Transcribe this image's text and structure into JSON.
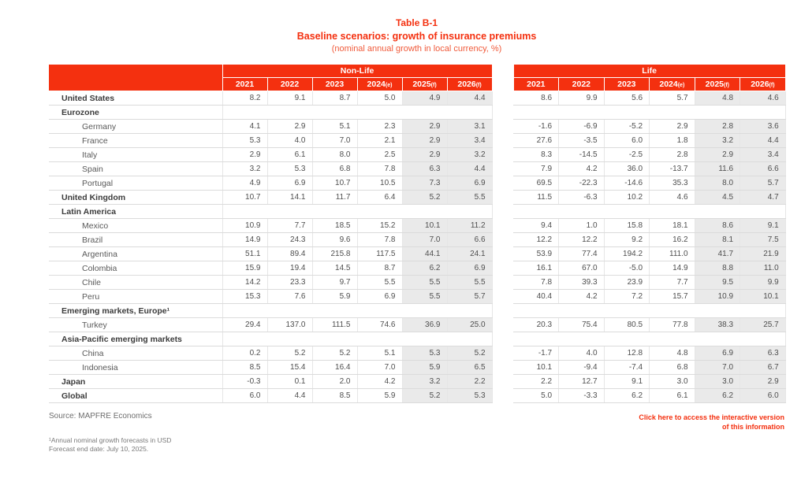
{
  "title": {
    "line1": "Table B-1",
    "line2": "Baseline scenarios: growth of insurance premiums",
    "line3": "(nominal annual growth in local currency, %)"
  },
  "colors": {
    "header_red": "#F4300F",
    "shade_gray": "#EAEAEA"
  },
  "table": {
    "group_headers": {
      "nonlife": "Non-Life",
      "life": "Life"
    },
    "years": [
      {
        "y": "2021",
        "s": ""
      },
      {
        "y": "2022",
        "s": ""
      },
      {
        "y": "2023",
        "s": ""
      },
      {
        "y": "2024",
        "s": "(e)"
      },
      {
        "y": "2025",
        "s": "(f)"
      },
      {
        "y": "2026",
        "s": "(f)"
      }
    ],
    "forecast_shaded_year_indexes": [
      4,
      5
    ],
    "rows": [
      {
        "label": "United States",
        "type": "region",
        "nonlife": [
          "8.2",
          "9.1",
          "8.7",
          "5.0",
          "4.9",
          "4.4"
        ],
        "life": [
          "8.6",
          "9.9",
          "5.6",
          "5.7",
          "4.8",
          "4.6"
        ]
      },
      {
        "label": "Eurozone",
        "type": "group"
      },
      {
        "label": "Germany",
        "type": "country",
        "nonlife": [
          "4.1",
          "2.9",
          "5.1",
          "2.3",
          "2.9",
          "3.1"
        ],
        "life": [
          "-1.6",
          "-6.9",
          "-5.2",
          "2.9",
          "2.8",
          "3.6"
        ]
      },
      {
        "label": "France",
        "type": "country",
        "nonlife": [
          "5.3",
          "4.0",
          "7.0",
          "2.1",
          "2.9",
          "3.4"
        ],
        "life": [
          "27.6",
          "-3.5",
          "6.0",
          "1.8",
          "3.2",
          "4.4"
        ]
      },
      {
        "label": "Italy",
        "type": "country",
        "nonlife": [
          "2.9",
          "6.1",
          "8.0",
          "2.5",
          "2.9",
          "3.2"
        ],
        "life": [
          "8.3",
          "-14.5",
          "-2.5",
          "2.8",
          "2.9",
          "3.4"
        ]
      },
      {
        "label": "Spain",
        "type": "country",
        "nonlife": [
          "3.2",
          "5.3",
          "6.8",
          "7.8",
          "6.3",
          "4.4"
        ],
        "life": [
          "7.9",
          "4.2",
          "36.0",
          "-13.7",
          "11.6",
          "6.6"
        ]
      },
      {
        "label": "Portugal",
        "type": "country",
        "nonlife": [
          "4.9",
          "6.9",
          "10.7",
          "10.5",
          "7.3",
          "6.9"
        ],
        "life": [
          "69.5",
          "-22.3",
          "-14.6",
          "35.3",
          "8.0",
          "5.7"
        ]
      },
      {
        "label": "United Kingdom",
        "type": "region",
        "nonlife": [
          "10.7",
          "14.1",
          "11.7",
          "6.4",
          "5.2",
          "5.5"
        ],
        "life": [
          "11.5",
          "-6.3",
          "10.2",
          "4.6",
          "4.5",
          "4.7"
        ]
      },
      {
        "label": "Latin America",
        "type": "group"
      },
      {
        "label": "Mexico",
        "type": "country",
        "nonlife": [
          "10.9",
          "7.7",
          "18.5",
          "15.2",
          "10.1",
          "11.2"
        ],
        "life": [
          "9.4",
          "1.0",
          "15.8",
          "18.1",
          "8.6",
          "9.1"
        ]
      },
      {
        "label": "Brazil",
        "type": "country",
        "nonlife": [
          "14.9",
          "24.3",
          "9.6",
          "7.8",
          "7.0",
          "6.6"
        ],
        "life": [
          "12.2",
          "12.2",
          "9.2",
          "16.2",
          "8.1",
          "7.5"
        ]
      },
      {
        "label": "Argentina",
        "type": "country",
        "nonlife": [
          "51.1",
          "89.4",
          "215.8",
          "117.5",
          "44.1",
          "24.1"
        ],
        "life": [
          "53.9",
          "77.4",
          "194.2",
          "111.0",
          "41.7",
          "21.9"
        ]
      },
      {
        "label": "Colombia",
        "type": "country",
        "nonlife": [
          "15.9",
          "19.4",
          "14.5",
          "8.7",
          "6.2",
          "6.9"
        ],
        "life": [
          "16.1",
          "67.0",
          "-5.0",
          "14.9",
          "8.8",
          "11.0"
        ]
      },
      {
        "label": "Chile",
        "type": "country",
        "nonlife": [
          "14.2",
          "23.3",
          "9.7",
          "5.5",
          "5.5",
          "5.5"
        ],
        "life": [
          "7.8",
          "39.3",
          "23.9",
          "7.7",
          "9.5",
          "9.9"
        ]
      },
      {
        "label": "Peru",
        "type": "country",
        "nonlife": [
          "15.3",
          "7.6",
          "5.9",
          "6.9",
          "5.5",
          "5.7"
        ],
        "life": [
          "40.4",
          "4.2",
          "7.2",
          "15.7",
          "10.9",
          "10.1"
        ]
      },
      {
        "label": "Emerging markets, Europe¹",
        "type": "group"
      },
      {
        "label": "Turkey",
        "type": "country",
        "nonlife": [
          "29.4",
          "137.0",
          "111.5",
          "74.6",
          "36.9",
          "25.0"
        ],
        "life": [
          "20.3",
          "75.4",
          "80.5",
          "77.8",
          "38.3",
          "25.7"
        ]
      },
      {
        "label": "Asia-Pacific emerging markets",
        "type": "group"
      },
      {
        "label": "China",
        "type": "country",
        "nonlife": [
          "0.2",
          "5.2",
          "5.2",
          "5.1",
          "5.3",
          "5.2"
        ],
        "life": [
          "-1.7",
          "4.0",
          "12.8",
          "4.8",
          "6.9",
          "6.3"
        ]
      },
      {
        "label": "Indonesia",
        "type": "country",
        "nonlife": [
          "8.5",
          "15.4",
          "16.4",
          "7.0",
          "5.9",
          "6.5"
        ],
        "life": [
          "10.1",
          "-9.4",
          "-7.4",
          "6.8",
          "7.0",
          "6.7"
        ]
      },
      {
        "label": "Japan",
        "type": "region",
        "nonlife": [
          "-0.3",
          "0.1",
          "2.0",
          "4.2",
          "3.2",
          "2.2"
        ],
        "life": [
          "2.2",
          "12.7",
          "9.1",
          "3.0",
          "3.0",
          "2.9"
        ]
      },
      {
        "label": "Global",
        "type": "region",
        "nonlife": [
          "6.0",
          "4.4",
          "8.5",
          "5.9",
          "5.2",
          "5.3"
        ],
        "life": [
          "5.0",
          "-3.3",
          "6.2",
          "6.1",
          "6.2",
          "6.0"
        ]
      }
    ]
  },
  "footer": {
    "source": "Source: MAPFRE Economics",
    "note1": "¹Annual nominal growth forecasts in USD",
    "note2": "Forecast end date: July 10, 2025.",
    "link": "Click here to access the interactive version of this information"
  }
}
